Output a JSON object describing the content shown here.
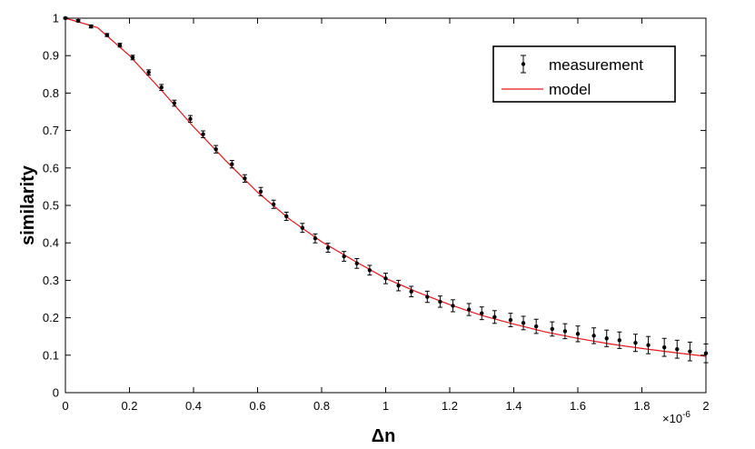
{
  "chart_data": {
    "type": "scatter",
    "xlabel": "Δn",
    "ylabel": "similarity",
    "x_exponent_label": "×10",
    "x_exponent_power": "-6",
    "xlim": [
      0,
      2
    ],
    "ylim": [
      0,
      1
    ],
    "xticks": [
      0,
      0.2,
      0.4,
      0.6,
      0.8,
      1,
      1.2,
      1.4,
      1.6,
      1.8,
      2
    ],
    "xtick_labels": [
      "0",
      "0.2",
      "0.4",
      "0.6",
      "0.8",
      "1",
      "1.2",
      "1.4",
      "1.6",
      "1.8",
      "2"
    ],
    "yticks": [
      0,
      0.1,
      0.2,
      0.3,
      0.4,
      0.5,
      0.6,
      0.7,
      0.8,
      0.9,
      1
    ],
    "ytick_labels": [
      "0",
      "0.1",
      "0.2",
      "0.3",
      "0.4",
      "0.5",
      "0.6",
      "0.7",
      "0.8",
      "0.9",
      "1"
    ],
    "grid": false,
    "legend_position": "top-right",
    "series": [
      {
        "name": "measurement",
        "kind": "errorbar",
        "color": "#000000",
        "x": [
          0,
          0.04,
          0.08,
          0.13,
          0.17,
          0.21,
          0.26,
          0.3,
          0.34,
          0.39,
          0.43,
          0.47,
          0.52,
          0.56,
          0.61,
          0.65,
          0.69,
          0.74,
          0.78,
          0.82,
          0.87,
          0.91,
          0.95,
          1.0,
          1.04,
          1.08,
          1.13,
          1.17,
          1.21,
          1.26,
          1.3,
          1.34,
          1.39,
          1.43,
          1.47,
          1.52,
          1.56,
          1.6,
          1.65,
          1.69,
          1.73,
          1.78,
          1.82,
          1.87,
          1.91,
          1.95,
          2.0
        ],
        "y": [
          1.0,
          0.993,
          0.978,
          0.955,
          0.928,
          0.895,
          0.855,
          0.815,
          0.773,
          0.731,
          0.69,
          0.65,
          0.61,
          0.572,
          0.537,
          0.503,
          0.471,
          0.44,
          0.412,
          0.387,
          0.364,
          0.345,
          0.327,
          0.305,
          0.286,
          0.27,
          0.256,
          0.243,
          0.232,
          0.222,
          0.212,
          0.202,
          0.194,
          0.186,
          0.177,
          0.17,
          0.164,
          0.157,
          0.152,
          0.145,
          0.14,
          0.133,
          0.127,
          0.121,
          0.116,
          0.11,
          0.105
        ],
        "error": [
          0.002,
          0.003,
          0.004,
          0.004,
          0.005,
          0.006,
          0.007,
          0.008,
          0.008,
          0.009,
          0.009,
          0.01,
          0.01,
          0.01,
          0.011,
          0.011,
          0.011,
          0.012,
          0.012,
          0.012,
          0.013,
          0.013,
          0.013,
          0.014,
          0.014,
          0.014,
          0.015,
          0.015,
          0.016,
          0.016,
          0.017,
          0.017,
          0.018,
          0.018,
          0.019,
          0.019,
          0.02,
          0.021,
          0.021,
          0.022,
          0.022,
          0.023,
          0.023,
          0.024,
          0.024,
          0.025,
          0.025
        ]
      },
      {
        "name": "model",
        "kind": "line",
        "color": "#e8141c",
        "x": [
          0,
          0.1,
          0.2,
          0.3,
          0.4,
          0.5,
          0.6,
          0.7,
          0.8,
          0.9,
          1.0,
          1.1,
          1.2,
          1.3,
          1.4,
          1.5,
          1.6,
          1.7,
          1.8,
          1.9,
          2.0
        ],
        "y": [
          1.0,
          0.975,
          0.9,
          0.807,
          0.71,
          0.62,
          0.535,
          0.463,
          0.403,
          0.353,
          0.305,
          0.268,
          0.235,
          0.206,
          0.183,
          0.162,
          0.145,
          0.13,
          0.118,
          0.107,
          0.097
        ]
      }
    ]
  }
}
